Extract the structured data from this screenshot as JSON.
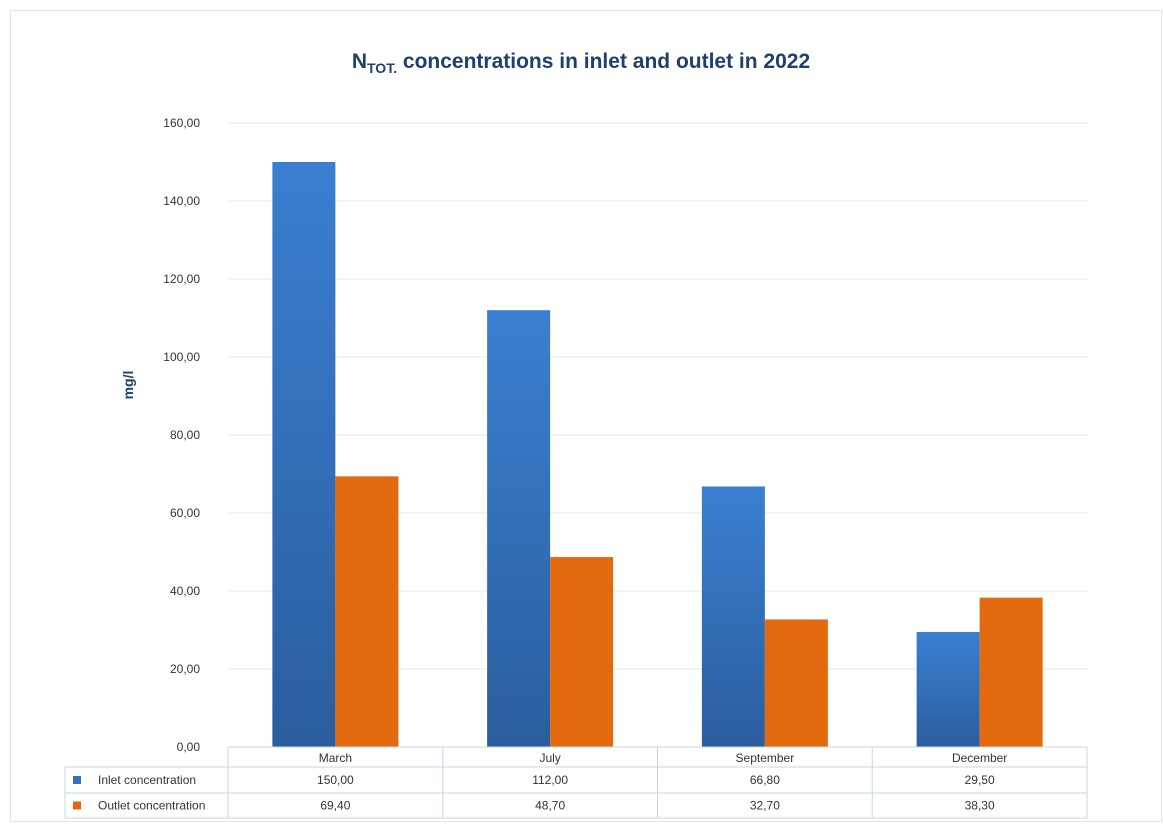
{
  "chart_data": {
    "type": "bar",
    "title_main": "N",
    "title_sub": "TOT.",
    "title_rest": " concentrations in inlet and outlet in 2022",
    "ylabel": "mg/l",
    "ylim": [
      0,
      160
    ],
    "yticks": [
      "0,00",
      "20,00",
      "40,00",
      "60,00",
      "80,00",
      "100,00",
      "120,00",
      "140,00",
      "160,00"
    ],
    "categories": [
      "March",
      "July",
      "September",
      "December"
    ],
    "series": [
      {
        "name": "Inlet concentration",
        "values": [
          150.0,
          112.0,
          66.8,
          29.5
        ],
        "labels": [
          "150,00",
          "112,00",
          "66,80",
          "29,50"
        ],
        "color": "#3571bf"
      },
      {
        "name": "Outlet concentration",
        "values": [
          69.4,
          48.7,
          32.7,
          38.3
        ],
        "labels": [
          "69,40",
          "48,70",
          "32,70",
          "38,30"
        ],
        "color": "#e2690e"
      }
    ],
    "grid": true,
    "legend": "data-table"
  },
  "colors": {
    "title": "#1f3f6e",
    "axis_label": "#1f3f6e",
    "gridline": "#dde8f3"
  }
}
